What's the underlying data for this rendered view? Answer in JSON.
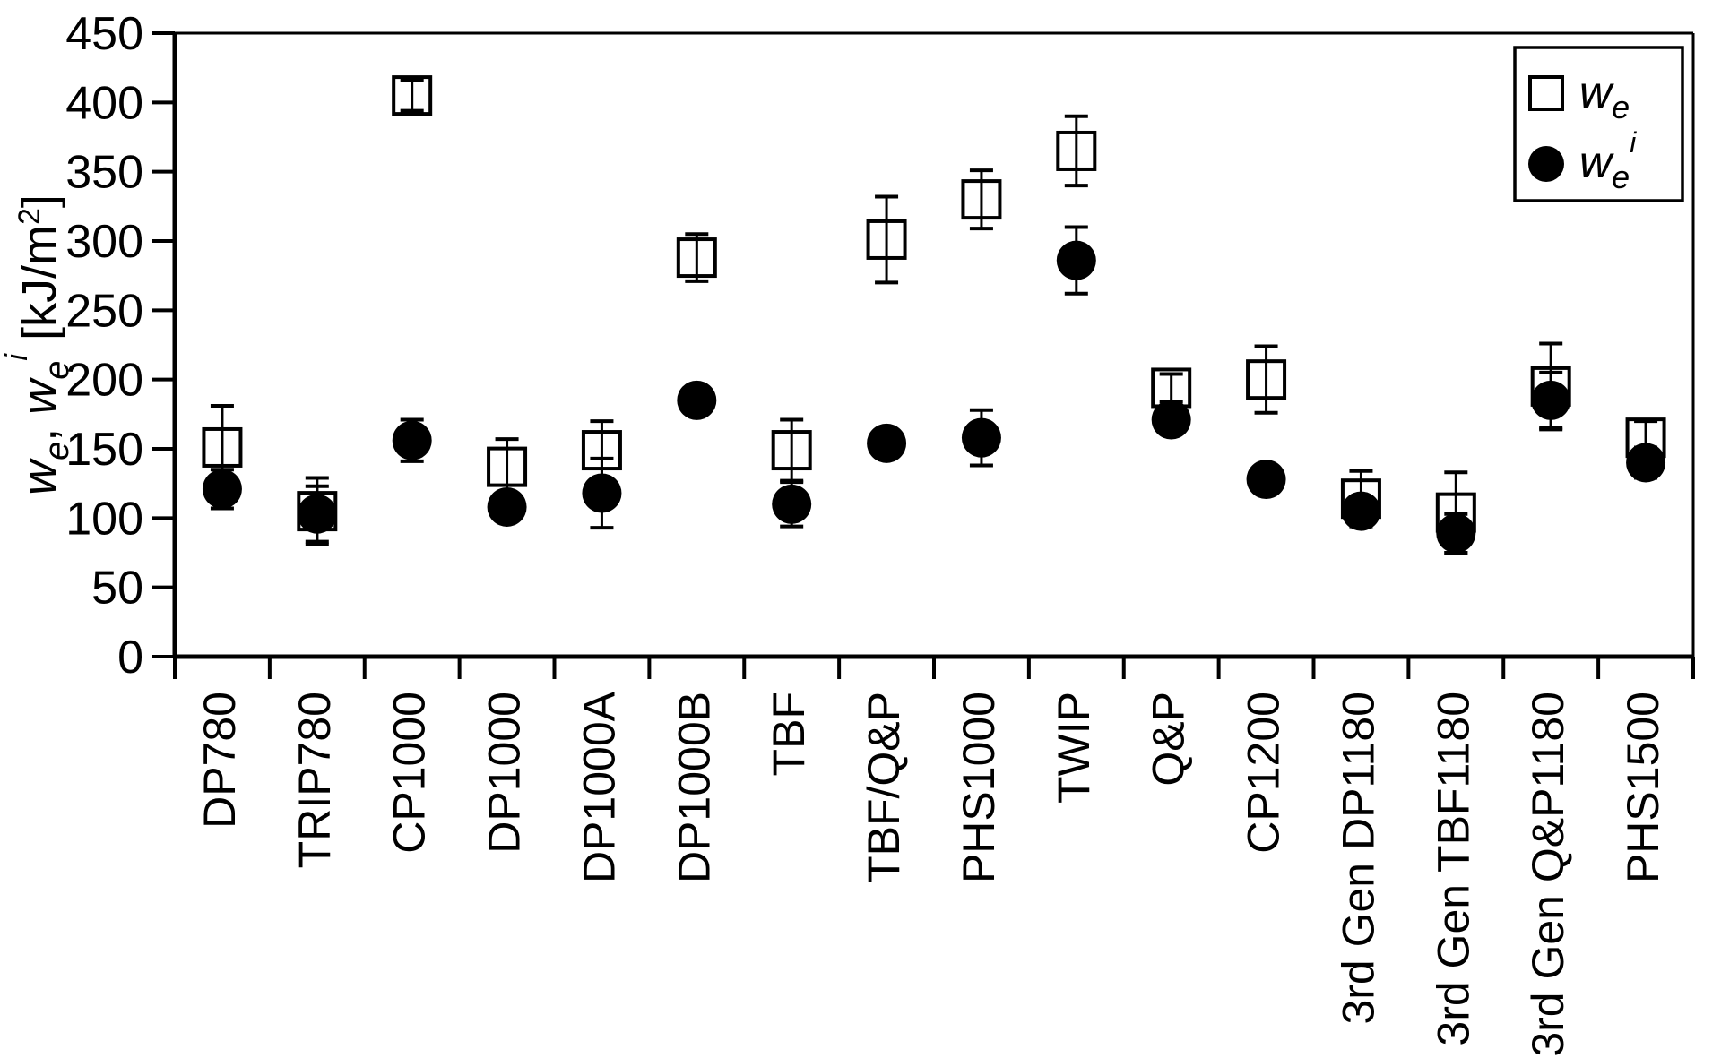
{
  "colors": {
    "ink": "#000000",
    "background": "#ffffff"
  },
  "chart_data": {
    "type": "scatter",
    "title": "",
    "ylabel_text": "we, wei [kJ/m2]",
    "ylabel_units": "kJ/m2",
    "ylim": [
      0,
      450
    ],
    "ytick_step": 50,
    "yticks": [
      0,
      50,
      100,
      150,
      200,
      250,
      300,
      350,
      400,
      450
    ],
    "grid": false,
    "legend_position": "top-right",
    "categories": [
      "DP780",
      "TRIP780",
      "CP1000",
      "DP1000",
      "DP1000A",
      "DP1000B",
      "TBF",
      "TBF/Q&P",
      "PHS1000",
      "TWIP",
      "Q&P",
      "CP1200",
      "3rd Gen DP1180",
      "3rd Gen TBF1180",
      "3rd Gen Q&P1180",
      "PHS1500"
    ],
    "series": [
      {
        "name": "we",
        "label_plain": "we",
        "marker": "open-square",
        "values": [
          151,
          105,
          405,
          137,
          149,
          288,
          149,
          301,
          330,
          365,
          194,
          200,
          114,
          104,
          195,
          158
        ],
        "errors": [
          30,
          24,
          11,
          20,
          21,
          17,
          22,
          31,
          21,
          25,
          10,
          24,
          20,
          29,
          31,
          12
        ]
      },
      {
        "name": "wei",
        "label_plain": "wei",
        "marker": "filled-circle",
        "values": [
          121,
          103,
          156,
          108,
          118,
          185,
          110,
          154,
          158,
          286,
          171,
          128,
          105,
          89,
          185,
          140
        ],
        "errors": [
          14,
          20,
          15,
          8,
          25,
          10,
          16,
          8,
          20,
          24,
          10,
          8,
          10,
          14,
          20,
          11
        ]
      }
    ],
    "ylabel_parts": [
      {
        "text": "w",
        "italic": true,
        "size": 54,
        "dy": 0
      },
      {
        "text": "e",
        "italic": true,
        "size": 38,
        "dy": 14
      },
      {
        "text": ", ",
        "italic": false,
        "size": 54,
        "dy": -14
      },
      {
        "text": "w",
        "italic": true,
        "size": 54,
        "dy": 0
      },
      {
        "text": "e",
        "italic": true,
        "size": 38,
        "dy": 14
      },
      {
        "text": "i",
        "italic": true,
        "size": 34,
        "dy": -46
      },
      {
        "text": " [kJ/m",
        "italic": false,
        "size": 54,
        "dy": 32
      },
      {
        "text": "2",
        "italic": false,
        "size": 34,
        "dy": -18
      },
      {
        "text": "]",
        "italic": false,
        "size": 54,
        "dy": 18
      }
    ],
    "legend_entries": [
      {
        "marker": "open-square",
        "parts": [
          {
            "text": "w",
            "italic": true,
            "size": 50,
            "dy": 0
          },
          {
            "text": "e",
            "italic": true,
            "size": 36,
            "dy": 12
          }
        ]
      },
      {
        "marker": "filled-circle",
        "parts": [
          {
            "text": "w",
            "italic": true,
            "size": 50,
            "dy": 0
          },
          {
            "text": "e",
            "italic": true,
            "size": 36,
            "dy": 12
          },
          {
            "text": "i",
            "italic": true,
            "size": 32,
            "dy": -40
          }
        ]
      }
    ]
  }
}
